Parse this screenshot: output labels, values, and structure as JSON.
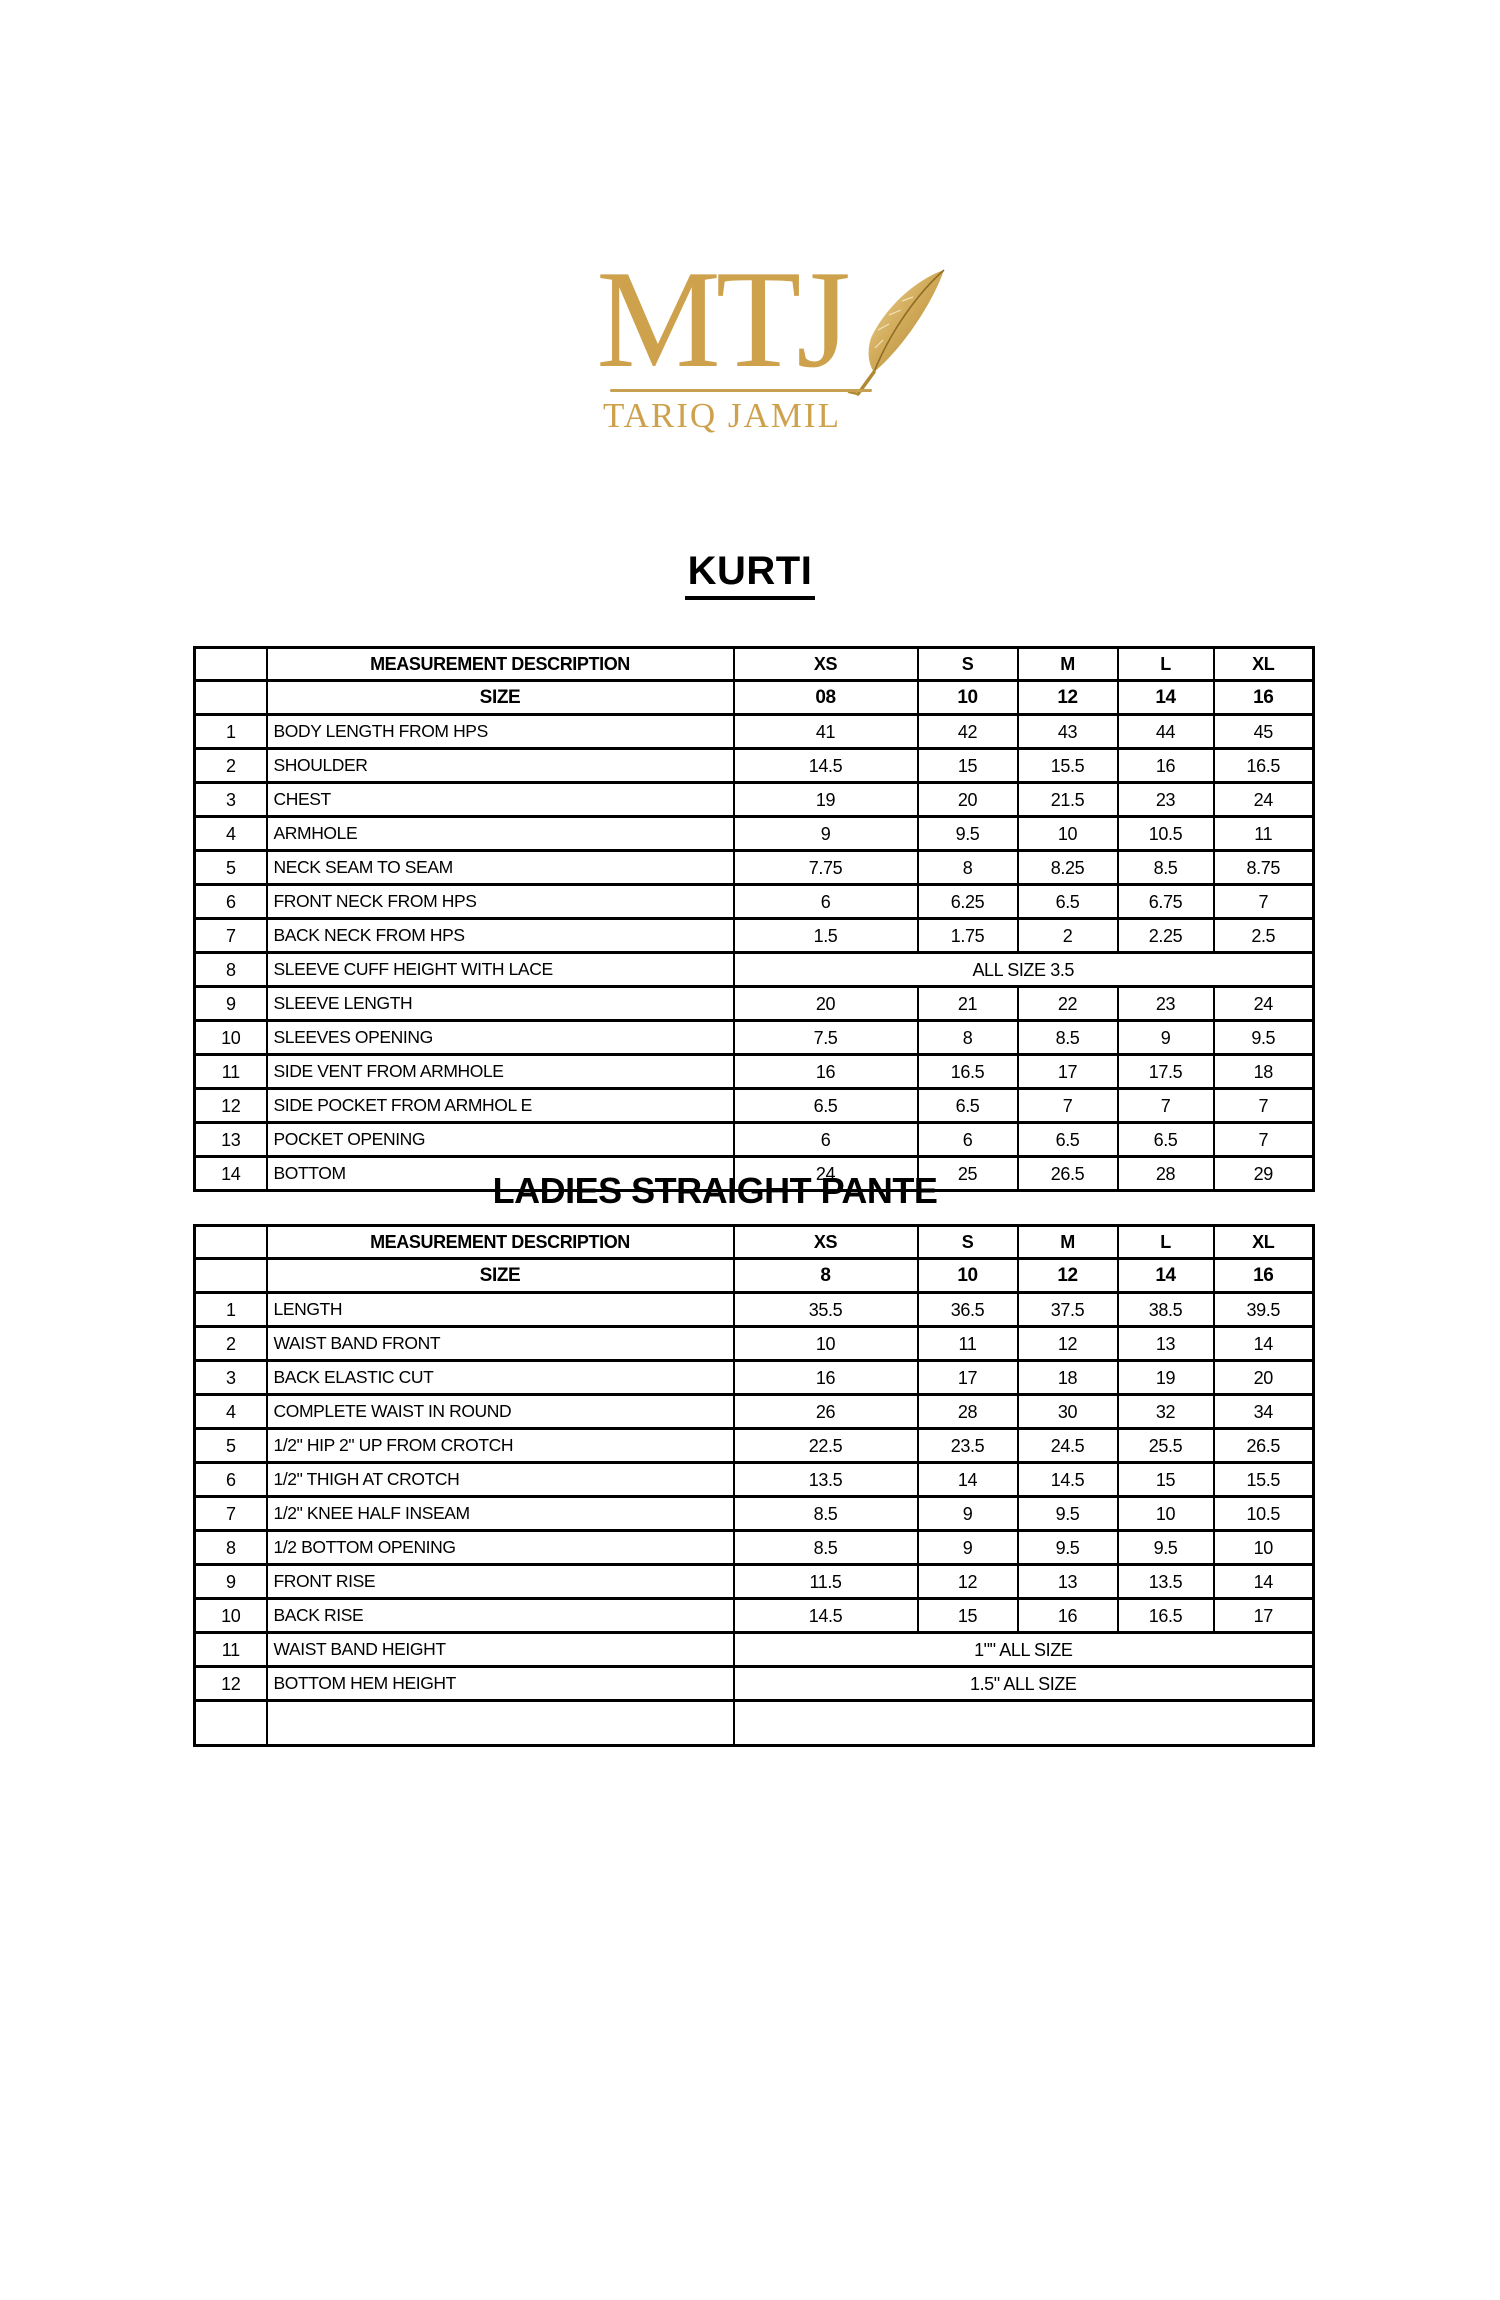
{
  "logo": {
    "monogram": "MTJ",
    "brand_name": "TARIQ JAMIL",
    "gold_color": "#CEA14D",
    "rule_color": "#C7A052",
    "feather_icon": "quill-feather-icon"
  },
  "tables": [
    {
      "title": "KURTI",
      "header": {
        "desc_label": "MEASUREMENT DESCRIPTION",
        "sizes": [
          "XS",
          "S",
          "M",
          "L",
          "XL"
        ]
      },
      "size_row": {
        "label": "SIZE",
        "values": [
          "08",
          "10",
          "12",
          "14",
          "16"
        ]
      },
      "rows": [
        {
          "num": "1",
          "desc": "BODY LENGTH FROM HPS",
          "values": [
            "41",
            "42",
            "43",
            "44",
            "45"
          ]
        },
        {
          "num": "2",
          "desc": "SHOULDER",
          "values": [
            "14.5",
            "15",
            "15.5",
            "16",
            "16.5"
          ]
        },
        {
          "num": "3",
          "desc": "CHEST",
          "values": [
            "19",
            "20",
            "21.5",
            "23",
            "24"
          ]
        },
        {
          "num": "4",
          "desc": "ARMHOLE",
          "values": [
            "9",
            "9.5",
            "10",
            "10.5",
            "11"
          ]
        },
        {
          "num": "5",
          "desc": "NECK SEAM TO SEAM",
          "values": [
            "7.75",
            "8",
            "8.25",
            "8.5",
            "8.75"
          ]
        },
        {
          "num": "6",
          "desc": "FRONT NECK FROM HPS",
          "values": [
            "6",
            "6.25",
            "6.5",
            "6.75",
            "7"
          ]
        },
        {
          "num": "7",
          "desc": "BACK NECK FROM HPS",
          "values": [
            "1.5",
            "1.75",
            "2",
            "2.25",
            "2.5"
          ]
        },
        {
          "num": "8",
          "desc": "SLEEVE CUFF HEIGHT WITH LACE",
          "merged": "ALL SIZE 3.5"
        },
        {
          "num": "9",
          "desc": "SLEEVE LENGTH",
          "values": [
            "20",
            "21",
            "22",
            "23",
            "24"
          ]
        },
        {
          "num": "10",
          "desc": "SLEEVES OPENING",
          "values": [
            "7.5",
            "8",
            "8.5",
            "9",
            "9.5"
          ]
        },
        {
          "num": "11",
          "desc": "SIDE VENT FROM ARMHOLE",
          "values": [
            "16",
            "16.5",
            "17",
            "17.5",
            "18"
          ]
        },
        {
          "num": "12",
          "desc": "SIDE POCKET FROM ARMHOL E",
          "values": [
            "6.5",
            "6.5",
            "7",
            "7",
            "7"
          ]
        },
        {
          "num": "13",
          "desc": "POCKET OPENING",
          "values": [
            "6",
            "6",
            "6.5",
            "6.5",
            "7"
          ]
        },
        {
          "num": "14",
          "desc": "BOTTOM",
          "values": [
            "24",
            "25",
            "26.5",
            "28",
            "29"
          ]
        }
      ]
    },
    {
      "title": "LADIES STRAIGHT PANTE",
      "header": {
        "desc_label": "MEASUREMENT DESCRIPTION",
        "sizes": [
          "XS",
          "S",
          "M",
          "L",
          "XL"
        ]
      },
      "size_row": {
        "label": "SIZE",
        "values": [
          "8",
          "10",
          "12",
          "14",
          "16"
        ]
      },
      "rows": [
        {
          "num": "1",
          "desc": "LENGTH",
          "values": [
            "35.5",
            "36.5",
            "37.5",
            "38.5",
            "39.5"
          ]
        },
        {
          "num": "2",
          "desc": "WAIST BAND FRONT",
          "values": [
            "10",
            "11",
            "12",
            "13",
            "14"
          ]
        },
        {
          "num": "3",
          "desc": "BACK ELASTIC CUT",
          "values": [
            "16",
            "17",
            "18",
            "19",
            "20"
          ]
        },
        {
          "num": "4",
          "desc": "COMPLETE WAIST IN ROUND",
          "values": [
            "26",
            "28",
            "30",
            "32",
            "34"
          ]
        },
        {
          "num": "5",
          "desc": "1/2\" HIP 2\" UP FROM CROTCH",
          "values": [
            "22.5",
            "23.5",
            "24.5",
            "25.5",
            "26.5"
          ]
        },
        {
          "num": "6",
          "desc": "1/2\" THIGH AT CROTCH",
          "values": [
            "13.5",
            "14",
            "14.5",
            "15",
            "15.5"
          ]
        },
        {
          "num": "7",
          "desc": "1/2\" KNEE HALF INSEAM",
          "values": [
            "8.5",
            "9",
            "9.5",
            "10",
            "10.5"
          ]
        },
        {
          "num": "8",
          "desc": "1/2 BOTTOM OPENING",
          "values": [
            "8.5",
            "9",
            "9.5",
            "9.5",
            "10"
          ]
        },
        {
          "num": "9",
          "desc": "FRONT RISE",
          "values": [
            "11.5",
            "12",
            "13",
            "13.5",
            "14"
          ]
        },
        {
          "num": "10",
          "desc": "BACK RISE",
          "values": [
            "14.5",
            "15",
            "16",
            "16.5",
            "17"
          ]
        },
        {
          "num": "11",
          "desc": "WAIST BAND HEIGHT",
          "merged": "1\"\" ALL SIZE"
        },
        {
          "num": "12",
          "desc": "BOTTOM HEM HEIGHT",
          "merged": "1.5\" ALL SIZE"
        },
        {
          "num": "",
          "desc": "",
          "merged": ""
        }
      ]
    }
  ]
}
